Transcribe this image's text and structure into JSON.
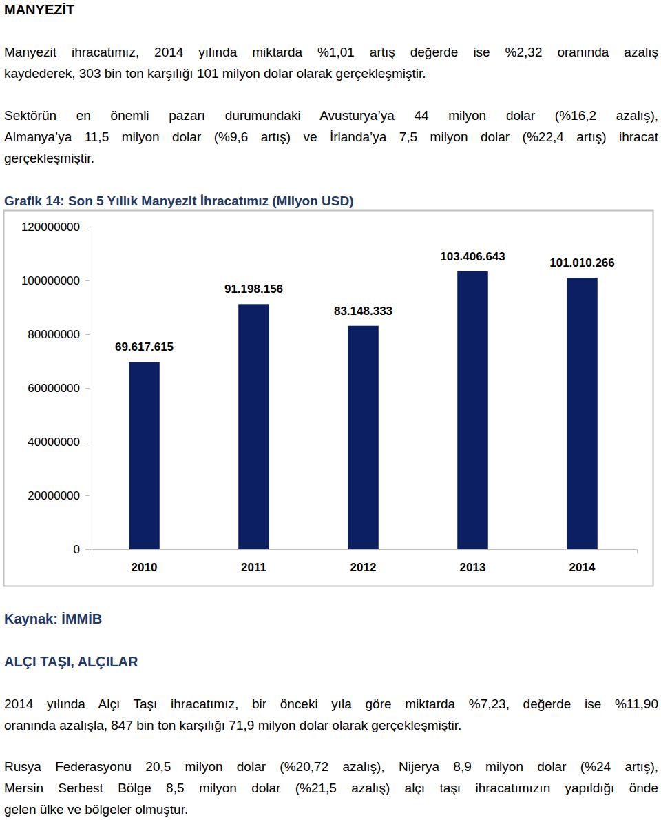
{
  "document": {
    "heading": "MANYEZİT",
    "paragraph_1": [
      "Manyezit ihracatımız, 2014 yılında miktarda %1,01 artış değerde ise %2,32 oranında azalış",
      "kaydederek, 303 bin ton karşılığı 101 milyon dolar olarak gerçekleşmiştir."
    ],
    "paragraph_2": [
      "Sektörün en önemli pazarı durumundaki Avusturya’ya 44 milyon dolar (%16,2 azalış),",
      "Almanya’ya 11,5 milyon dolar (%9,6 artış) ve İrlanda’ya 7,5 milyon dolar (%22,4 artış) ihracat",
      "gerçekleşmiştir."
    ],
    "source": "Kaynak: İMMİB",
    "heading_2": "ALÇI TAŞI, ALÇILAR",
    "paragraph_3": [
      "2014 yılında Alçı Taşı ihracatımız, bir önceki yıla göre miktarda %7,23, değerde ise %11,90",
      "oranında azalışla, 847 bin ton karşılığı 71,9 milyon dolar olarak gerçekleşmiştir."
    ],
    "paragraph_4": [
      "Rusya Federasyonu 20,5 milyon dolar (%20,72 azalış), Nijerya 8,9 milyon dolar (%24 artış),",
      "Mersin Serbest Bölge 8,5 milyon dolar (%21,5 azalış) alçı taşı ihracatımızın yapıldığı önde",
      "gelen ülke ve bölgeler olmuştur."
    ]
  },
  "chart_data": {
    "type": "bar",
    "title": "Grafik 14: Son 5 Yıllık Manyezit İhracatımız (Milyon USD)",
    "categories": [
      "2010",
      "2011",
      "2012",
      "2013",
      "2014"
    ],
    "values": [
      69617615,
      91198156,
      83148333,
      103406643,
      101010266
    ],
    "value_labels": [
      "69.617.615",
      "91.198.156",
      "83.148.333",
      "103.406.643",
      "101.010.266"
    ],
    "color": "#0d1f63",
    "ylim": [
      0,
      120000000
    ],
    "yticks": [
      0,
      20000000,
      40000000,
      60000000,
      80000000,
      100000000,
      120000000
    ],
    "grid": false,
    "data_labels": true
  }
}
